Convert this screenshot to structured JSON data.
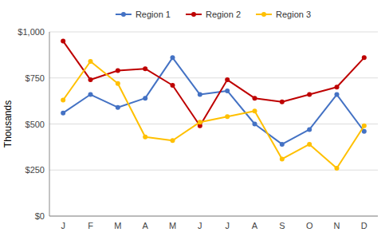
{
  "chart_data": {
    "type": "line",
    "ylabel": "Thousands",
    "categories": [
      "J",
      "F",
      "M",
      "A",
      "M",
      "J",
      "J",
      "A",
      "S",
      "O",
      "N",
      "D"
    ],
    "series": [
      {
        "name": "Region 1",
        "color": "#4472C4",
        "values": [
          560,
          660,
          590,
          640,
          860,
          660,
          680,
          500,
          390,
          470,
          660,
          460
        ]
      },
      {
        "name": "Region 2",
        "color": "#BE0000",
        "values": [
          950,
          740,
          790,
          800,
          710,
          490,
          740,
          640,
          620,
          660,
          700,
          860
        ]
      },
      {
        "name": "Region 3",
        "color": "#FFC000",
        "values": [
          630,
          840,
          720,
          430,
          410,
          510,
          540,
          570,
          310,
          390,
          260,
          490
        ]
      }
    ],
    "ylim": [
      0,
      1000
    ],
    "yticks": [
      {
        "value": 0,
        "label": "$0"
      },
      {
        "value": 250,
        "label": "$250"
      },
      {
        "value": 500,
        "label": "$500"
      },
      {
        "value": 750,
        "label": "$750"
      },
      {
        "value": 1000,
        "label": "$1,000"
      }
    ],
    "grid": true,
    "legend": "top",
    "marker": "circle"
  }
}
